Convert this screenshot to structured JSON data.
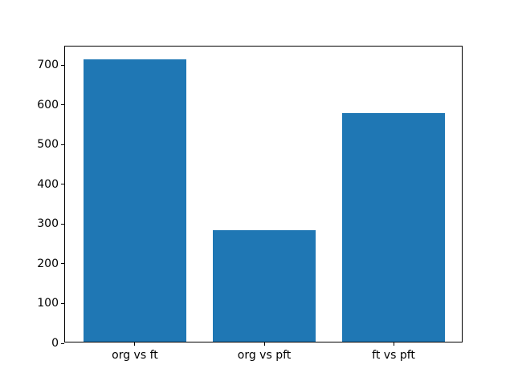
{
  "chart_data": {
    "type": "bar",
    "title": "",
    "xlabel": "",
    "ylabel": "",
    "categories": [
      "org vs ft",
      "org vs pft",
      "ft vs pft"
    ],
    "values": [
      711,
      280,
      575
    ],
    "bar_color": "#1f77b4",
    "yticks": [
      0,
      100,
      200,
      300,
      400,
      500,
      600,
      700
    ],
    "ylim": [
      0,
      747
    ],
    "xlim": [
      -0.54,
      2.54
    ],
    "bar_width_units": 0.8,
    "grid": false,
    "legend": "none",
    "background_color": "#ffffff",
    "spine_color": "#000000"
  }
}
